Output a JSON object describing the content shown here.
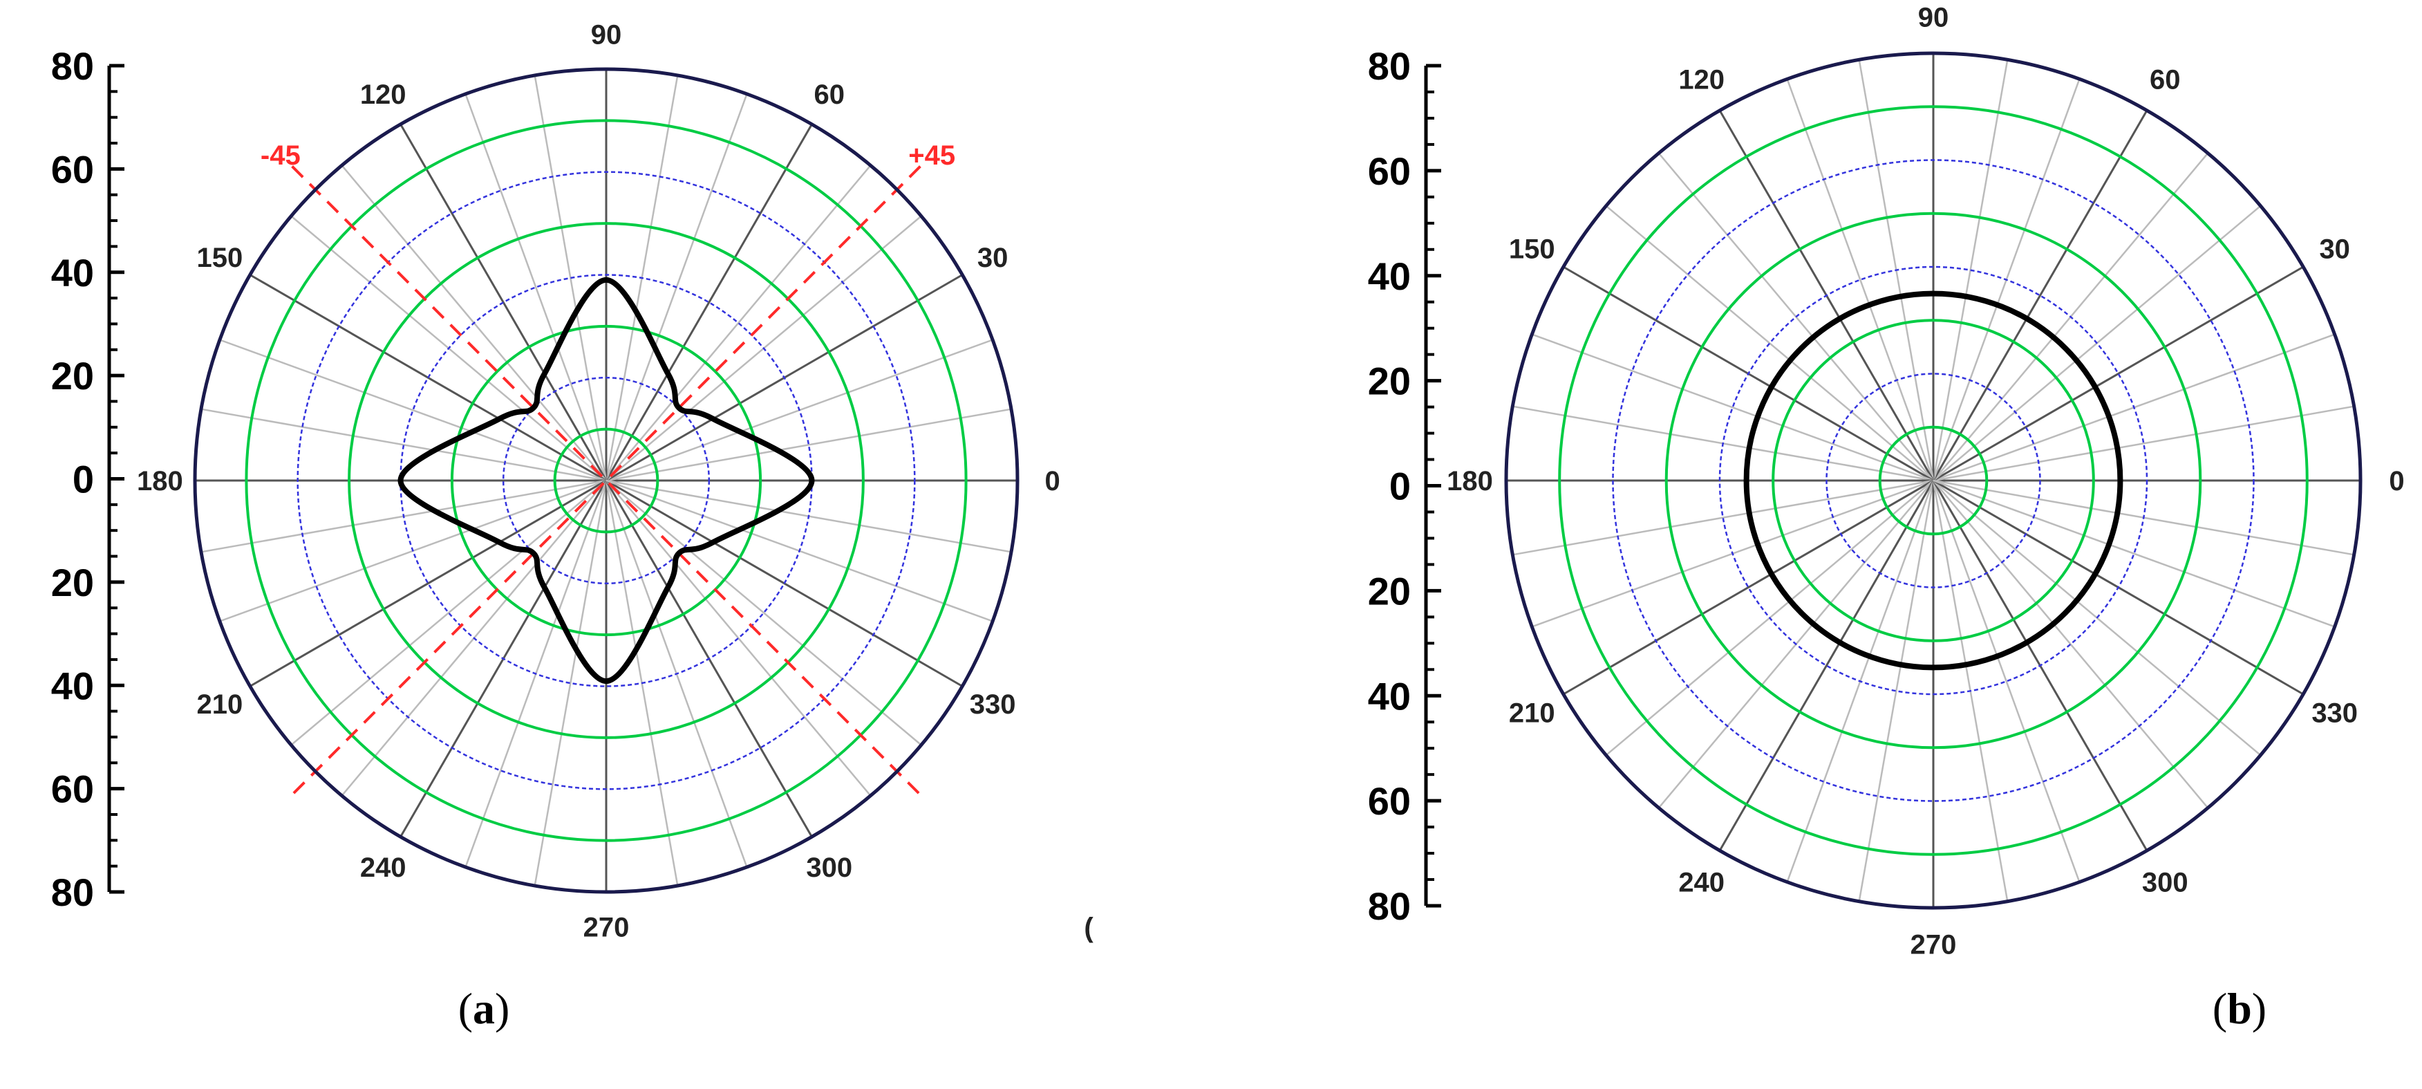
{
  "chart_data": [
    {
      "panel": "a",
      "type": "polar",
      "panel_label": {
        "open": "(",
        "letter": "a",
        "close": ")"
      },
      "radial_axis": {
        "tick_labels": [
          "80",
          "60",
          "40",
          "20",
          "0",
          "20",
          "40",
          "60",
          "80"
        ],
        "rlim": [
          0,
          80
        ]
      },
      "angular_tick_labels": [
        "0",
        "30",
        "60",
        "90",
        "120",
        "150",
        "180",
        "210",
        "240",
        "270",
        "300",
        "330"
      ],
      "grid": true,
      "grid_rings": [
        {
          "r": 10,
          "color": "#00cc44"
        },
        {
          "r": 20,
          "color": "#3333dd"
        },
        {
          "r": 30,
          "color": "#00cc44"
        },
        {
          "r": 40,
          "color": "#3333dd"
        },
        {
          "r": 50,
          "color": "#00cc44"
        },
        {
          "r": 60,
          "color": "#3333dd"
        },
        {
          "r": 70,
          "color": "#00cc44"
        }
      ],
      "guide_lines": [
        {
          "label": "+45",
          "angle": 45,
          "color": "#ff2a2a"
        },
        {
          "label": "-45",
          "angle": 135,
          "color": "#ff2a2a"
        }
      ],
      "series": [
        {
          "shape": "four-lobed",
          "theta_deg": [
            0,
            30,
            45,
            60,
            90,
            120,
            135,
            150,
            180,
            210,
            225,
            240,
            270,
            300,
            315,
            330,
            360
          ],
          "r": [
            40,
            24,
            20,
            24,
            39,
            24,
            20,
            24,
            40,
            24,
            20,
            24,
            39,
            24,
            20,
            24,
            40
          ],
          "color": "#000000"
        }
      ],
      "stray_mark": "("
    },
    {
      "panel": "b",
      "type": "polar",
      "panel_label": {
        "open": "(",
        "letter": "b",
        "close": ")"
      },
      "radial_axis": {
        "tick_labels": [
          "80",
          "60",
          "40",
          "20",
          "0",
          "20",
          "40",
          "60",
          "80"
        ],
        "rlim": [
          0,
          80
        ]
      },
      "angular_tick_labels": [
        "0",
        "30",
        "60",
        "90",
        "120",
        "150",
        "180",
        "210",
        "240",
        "270",
        "300",
        "330"
      ],
      "grid": true,
      "grid_rings": [
        {
          "r": 10,
          "color": "#00cc44"
        },
        {
          "r": 20,
          "color": "#3333dd"
        },
        {
          "r": 30,
          "color": "#00cc44"
        },
        {
          "r": 40,
          "color": "#3333dd"
        },
        {
          "r": 50,
          "color": "#00cc44"
        },
        {
          "r": 60,
          "color": "#3333dd"
        },
        {
          "r": 70,
          "color": "#00cc44"
        }
      ],
      "guide_lines": [],
      "series": [
        {
          "shape": "circle",
          "theta_deg": [
            0,
            90,
            180,
            270,
            360
          ],
          "r": [
            35,
            35,
            35,
            35,
            35
          ],
          "color": "#000000"
        }
      ]
    }
  ]
}
